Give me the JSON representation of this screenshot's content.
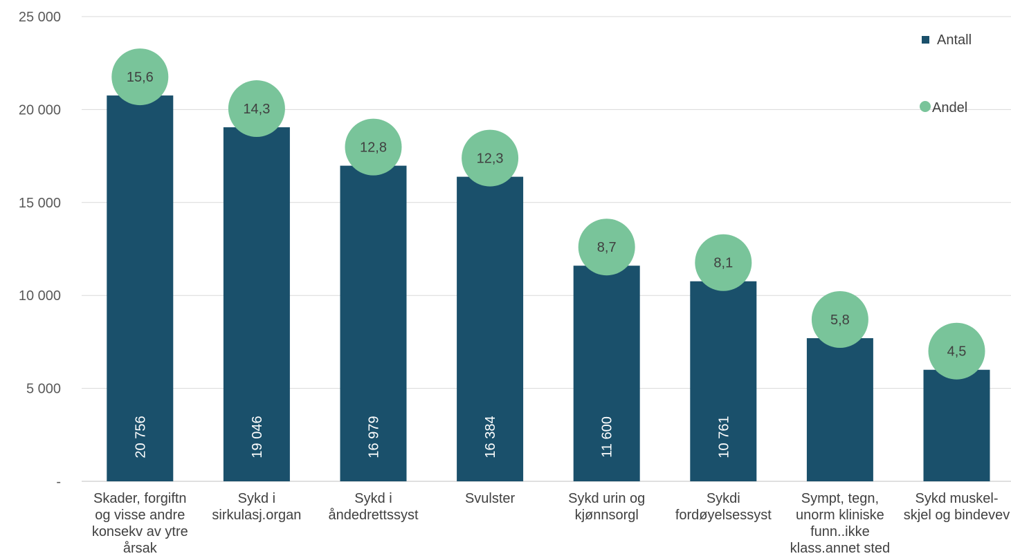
{
  "chart_data": {
    "type": "bar",
    "title": "",
    "xlabel": "",
    "ylabel": "",
    "ylim": [
      0,
      25000
    ],
    "y_ticks": [
      {
        "value": 0,
        "label": "-"
      },
      {
        "value": 5000,
        "label": "5 000"
      },
      {
        "value": 10000,
        "label": "10 000"
      },
      {
        "value": 15000,
        "label": "15 000"
      },
      {
        "value": 20000,
        "label": "20 000"
      },
      {
        "value": 25000,
        "label": "25 000"
      }
    ],
    "grid": true,
    "legend_position": "top-right",
    "categories": [
      [
        "Skader, forgiftn",
        "og visse andre",
        "konsekv av ytre",
        "årsak"
      ],
      [
        "Sykd i",
        "sirkulasj.organ"
      ],
      [
        "Sykd i",
        "åndedrettssyst"
      ],
      [
        "Svulster"
      ],
      [
        "Sykd urin og",
        "kjønnsorgl"
      ],
      [
        "Sykdi",
        "fordøyelsessyst"
      ],
      [
        "Sympt, tegn,",
        "unorm kliniske",
        "funn..ikke",
        "klass.annet sted"
      ],
      [
        "Sykd muskel-",
        "skjel og bindevev"
      ]
    ],
    "series": [
      {
        "name": "Antall",
        "type": "bar",
        "color": "#1a506b",
        "values": [
          20756,
          19046,
          16979,
          16384,
          11600,
          10761,
          7700,
          6000
        ],
        "labels": [
          "20 756",
          "19 046",
          "16 979",
          "16 384",
          "11 600",
          "10 761",
          "",
          ""
        ]
      },
      {
        "name": "Andel",
        "type": "marker",
        "color": "#79c49a",
        "values": [
          15.6,
          14.3,
          12.8,
          12.3,
          8.7,
          8.1,
          5.8,
          4.5
        ],
        "labels": [
          "15,6",
          "14,3",
          "12,8",
          "12,3",
          "8,7",
          "8,1",
          "5,8",
          "4,5"
        ]
      }
    ]
  }
}
